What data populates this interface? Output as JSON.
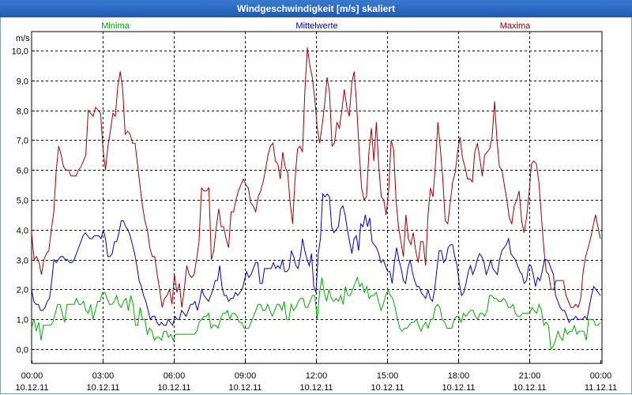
{
  "window": {
    "title": "Windgeschwindigkeit [m/s] skaliert"
  },
  "chart_data": {
    "type": "line",
    "title": "Windgeschwindigkeit [m/s] skaliert",
    "ylabel": "m/s",
    "xlabel": "",
    "ylim": [
      -0.5,
      10.5
    ],
    "xlim": [
      0,
      24
    ],
    "grid": true,
    "y_ticks": [
      "0,0",
      "1,0",
      "2,0",
      "3,0",
      "4,0",
      "5,0",
      "6,0",
      "7,0",
      "8,0",
      "9,0",
      "10,0"
    ],
    "x_ticks": [
      {
        "time": "00:00",
        "date": "10.12.11"
      },
      {
        "time": "03:00",
        "date": "10.12.11"
      },
      {
        "time": "06:00",
        "date": "10.12.11"
      },
      {
        "time": "09:00",
        "date": "10.12.11"
      },
      {
        "time": "12:00",
        "date": "10.12.11"
      },
      {
        "time": "15:00",
        "date": "10.12.11"
      },
      {
        "time": "18:00",
        "date": "10.12.11"
      },
      {
        "time": "21:00",
        "date": "10.12.11"
      },
      {
        "time": "00:00",
        "date": "11.12.11"
      }
    ],
    "colors": {
      "Minima": "#00aa00",
      "Mittelwerte": "#0000c0",
      "Maxima": "#a00000"
    },
    "series": [
      {
        "name": "Minima",
        "values": [
          0.7,
          1.0,
          0.6,
          0.9,
          0.3,
          0.8,
          0.8,
          0.8,
          0.8,
          0.9,
          1.2,
          1.5,
          1.5,
          1.2,
          0.9,
          1.5,
          1.5,
          1.5,
          1.5,
          1.7,
          1.5,
          1.5,
          1.6,
          1.3,
          1.2,
          1.5,
          1.0,
          1.3,
          1.6,
          1.6,
          1.9,
          1.9,
          1.7,
          1.5,
          1.5,
          1.6,
          1.8,
          1.5,
          1.4,
          1.6,
          1.7,
          1.3,
          1.8,
          1.5,
          0.8,
          0.8,
          1.4,
          1.0,
          1.0,
          0.5,
          0.7,
          0.6,
          0.3,
          0.4,
          0.4,
          0.3,
          0.6,
          0.6,
          0.4,
          0.5,
          0.3,
          0.5,
          0.5,
          0.5,
          0.5,
          0.5,
          0.5,
          0.5,
          0.5,
          0.5,
          0.6,
          0.9,
          1.0,
          1.1,
          1.1,
          1.2,
          0.7,
          0.8,
          0.8,
          0.7,
          1.0,
          1.2,
          1.2,
          1.3,
          1.0,
          1.2,
          1.2,
          1.1,
          0.9,
          0.9,
          0.7,
          0.7,
          0.7,
          0.9,
          1.1,
          1.3,
          1.5,
          1.5,
          1.3,
          1.3,
          1.5,
          1.3,
          1.1,
          1.3,
          1.5,
          1.5,
          1.3,
          1.6,
          1.0,
          1.0,
          1.5,
          1.3,
          1.4,
          1.6,
          1.7,
          1.7,
          1.4,
          1.4,
          1.6,
          1.8,
          1.8,
          1.0,
          1.9,
          2.4,
          1.9,
          1.6,
          2.0,
          1.7,
          1.6,
          1.7,
          1.6,
          1.8,
          1.5,
          2.1,
          1.8,
          1.8,
          2.0,
          2.2,
          2.4,
          2.1,
          2.2,
          1.9,
          2.1,
          1.7,
          1.8,
          1.8,
          1.9,
          1.6,
          1.3,
          1.5,
          1.8,
          2.0,
          1.8,
          1.7,
          1.4,
          1.0,
          0.7,
          0.6,
          0.7,
          0.7,
          0.8,
          0.9,
          0.9,
          1.0,
          0.8,
          0.6,
          0.8,
          0.9,
          0.7,
          1.0,
          1.0,
          1.4,
          1.5,
          1.4,
          1.0,
          0.9,
          0.7,
          0.7,
          0.7,
          1.0,
          1.1,
          1.1,
          0.9,
          1.2,
          1.1,
          1.2,
          1.3,
          1.3,
          1.1,
          1.0,
          1.2,
          1.2,
          1.1,
          1.3,
          1.8,
          1.8,
          1.7,
          1.7,
          1.6,
          1.6,
          1.7,
          1.6,
          1.4,
          1.4,
          1.5,
          1.2,
          1.1,
          1.1,
          1.2,
          1.2,
          1.2,
          1.2,
          1.4,
          1.3,
          1.2,
          1.5,
          1.3,
          0.8,
          0.9,
          0.8,
          0.0,
          0.1,
          0.3,
          0.6,
          0.4,
          0.3,
          0.7,
          0.5,
          0.6,
          0.6,
          0.8,
          0.5,
          0.6,
          0.6,
          0.6,
          0.3,
          1.0,
          1.0,
          1.0,
          0.8,
          0.8,
          0.9
        ]
      },
      {
        "name": "Mittelwerte",
        "values": [
          2.0,
          1.6,
          1.5,
          1.5,
          1.3,
          1.3,
          1.4,
          1.6,
          1.7,
          2.3,
          3.0,
          2.9,
          3.0,
          3.1,
          3.1,
          3.0,
          3.0,
          2.9,
          2.9,
          3.0,
          3.2,
          3.4,
          3.6,
          3.8,
          3.9,
          3.8,
          3.7,
          3.7,
          3.8,
          3.8,
          3.8,
          3.7,
          4.0,
          3.7,
          3.1,
          3.1,
          3.2,
          3.6,
          3.6,
          3.9,
          4.3,
          4.3,
          4.1,
          4.0,
          3.8,
          3.5,
          3.2,
          2.8,
          2.3,
          2.1,
          1.8,
          1.6,
          1.3,
          1.0,
          1.1,
          1.1,
          0.9,
          0.8,
          0.9,
          0.8,
          0.8,
          1.0,
          0.9,
          0.8,
          1.1,
          1.0,
          1.0,
          1.3,
          1.2,
          1.1,
          1.3,
          1.5,
          1.5,
          1.6,
          1.3,
          1.6,
          2.0,
          1.8,
          1.7,
          1.6,
          1.8,
          2.0,
          2.3,
          2.3,
          2.8,
          2.1,
          1.8,
          1.8,
          1.6,
          1.7,
          1.7,
          1.9,
          1.8,
          1.9,
          2.0,
          2.3,
          2.6,
          2.4,
          2.5,
          2.7,
          2.9,
          2.9,
          2.2,
          2.2,
          2.7,
          2.7,
          2.7,
          2.7,
          2.9,
          2.7,
          2.8,
          2.7,
          3.0,
          2.6,
          2.6,
          2.7,
          3.3,
          3.1,
          2.8,
          2.7,
          3.1,
          3.7,
          3.3,
          3.0,
          2.8,
          3.2,
          2.1,
          1.9,
          3.2,
          3.7,
          5.2,
          5.1,
          5.2,
          5.1,
          4.1,
          3.9,
          4.0,
          4.1,
          4.7,
          4.8,
          4.5,
          4.0,
          3.6,
          3.2,
          3.7,
          3.8,
          3.3,
          4.2,
          4.1,
          4.5,
          4.1,
          4.4,
          3.6,
          3.5,
          3.4,
          3.2,
          2.9,
          3.0,
          2.8,
          2.6,
          2.6,
          2.2,
          2.9,
          3.4,
          3.0,
          2.7,
          2.3,
          2.2,
          2.7,
          3.0,
          2.6,
          2.3,
          2.1,
          2.1,
          1.9,
          1.8,
          1.7,
          2.0,
          1.7,
          1.6,
          2.0,
          2.7,
          3.3,
          3.3,
          2.9,
          3.0,
          3.4,
          3.5,
          3.5,
          3.1,
          2.8,
          2.2,
          1.8,
          1.9,
          2.2,
          2.6,
          2.8,
          2.5,
          2.7,
          3.0,
          3.2,
          3.1,
          2.9,
          2.5,
          2.7,
          3.0,
          2.7,
          2.6,
          2.5,
          3.0,
          3.3,
          3.4,
          3.5,
          3.7,
          3.2,
          3.1,
          3.0,
          2.8,
          2.6,
          2.5,
          2.2,
          2.3,
          2.8,
          2.8,
          2.5,
          2.1,
          2.4,
          2.3,
          2.6,
          3.0,
          3.0,
          2.9,
          2.7,
          2.5,
          1.8,
          1.6,
          1.4,
          1.3,
          1.3,
          1.1,
          0.9,
          1.0,
          1.0,
          1.1,
          1.0,
          1.0,
          1.0,
          1.1,
          1.0,
          1.4,
          1.8,
          2.1,
          2.0,
          1.9,
          1.8
        ]
      },
      {
        "name": "Maxima",
        "values": [
          3.9,
          3.0,
          3.1,
          2.9,
          2.5,
          3.0,
          3.2,
          3.3,
          4.0,
          4.6,
          6.0,
          6.8,
          6.5,
          6.1,
          6.0,
          6.0,
          5.8,
          5.8,
          5.8,
          6.0,
          6.1,
          6.3,
          6.5,
          8.0,
          7.9,
          7.8,
          8.1,
          8.0,
          7.9,
          6.7,
          6.0,
          6.8,
          7.3,
          7.9,
          7.8,
          8.8,
          9.3,
          8.7,
          7.2,
          7.3,
          7.2,
          6.9,
          6.9,
          6.2,
          5.5,
          4.8,
          4.3,
          4.0,
          3.4,
          3.1,
          3.1,
          2.5,
          2.0,
          1.4,
          1.7,
          1.8,
          2.0,
          1.5,
          2.5,
          1.9,
          2.2,
          1.4,
          2.0,
          2.8,
          2.5,
          2.4,
          2.5,
          3.0,
          3.6,
          5.4,
          5.3,
          5.3,
          5.4,
          3.0,
          3.3,
          4.1,
          4.7,
          4.1,
          4.1,
          3.7,
          3.4,
          4.6,
          4.6,
          5.0,
          5.3,
          5.5,
          5.7,
          5.5,
          5.4,
          4.9,
          4.8,
          4.6,
          5.1,
          5.3,
          5.6,
          6.0,
          6.5,
          6.8,
          6.9,
          6.3,
          6.2,
          5.7,
          6.6,
          6.1,
          5.9,
          4.9,
          4.2,
          5.7,
          6.7,
          6.8,
          6.6,
          8.7,
          10.1,
          9.5,
          9.1,
          8.4,
          7.4,
          6.9,
          7.5,
          8.2,
          9.1,
          8.6,
          6.8,
          6.9,
          7.6,
          7.4,
          8.0,
          8.7,
          8.1,
          7.8,
          8.9,
          9.3,
          8.2,
          6.7,
          5.4,
          5.0,
          5.1,
          6.6,
          7.4,
          6.3,
          7.6,
          6.1,
          5.1,
          5.0,
          4.5,
          5.3,
          7.0,
          6.7,
          5.0,
          4.1,
          3.6,
          3.1,
          4.5,
          3.7,
          3.5,
          3.9,
          3.3,
          2.9,
          3.6,
          3.6,
          2.8,
          4.5,
          5.4,
          5.1,
          6.2,
          7.6,
          6.7,
          5.7,
          4.3,
          4.2,
          4.9,
          5.6,
          5.9,
          6.6,
          7.1,
          6.4,
          6.1,
          5.7,
          5.7,
          5.6,
          6.6,
          6.9,
          6.4,
          5.8,
          6.5,
          6.6,
          6.7,
          7.1,
          8.3,
          7.0,
          6.1,
          6.0,
          5.5,
          5.0,
          4.4,
          4.2,
          4.8,
          5.0,
          5.3,
          4.3,
          3.9,
          4.4,
          5.2,
          6.2,
          6.3,
          6.2,
          5.6,
          4.5,
          3.4,
          2.6,
          2.5,
          2.0,
          2.0,
          2.3,
          2.3,
          2.3,
          2.3,
          1.8,
          1.6,
          1.4,
          1.4,
          1.5,
          1.4,
          1.7,
          2.6,
          3.1,
          3.4,
          3.7,
          4.1,
          4.5,
          4.1,
          3.7
        ]
      }
    ]
  }
}
